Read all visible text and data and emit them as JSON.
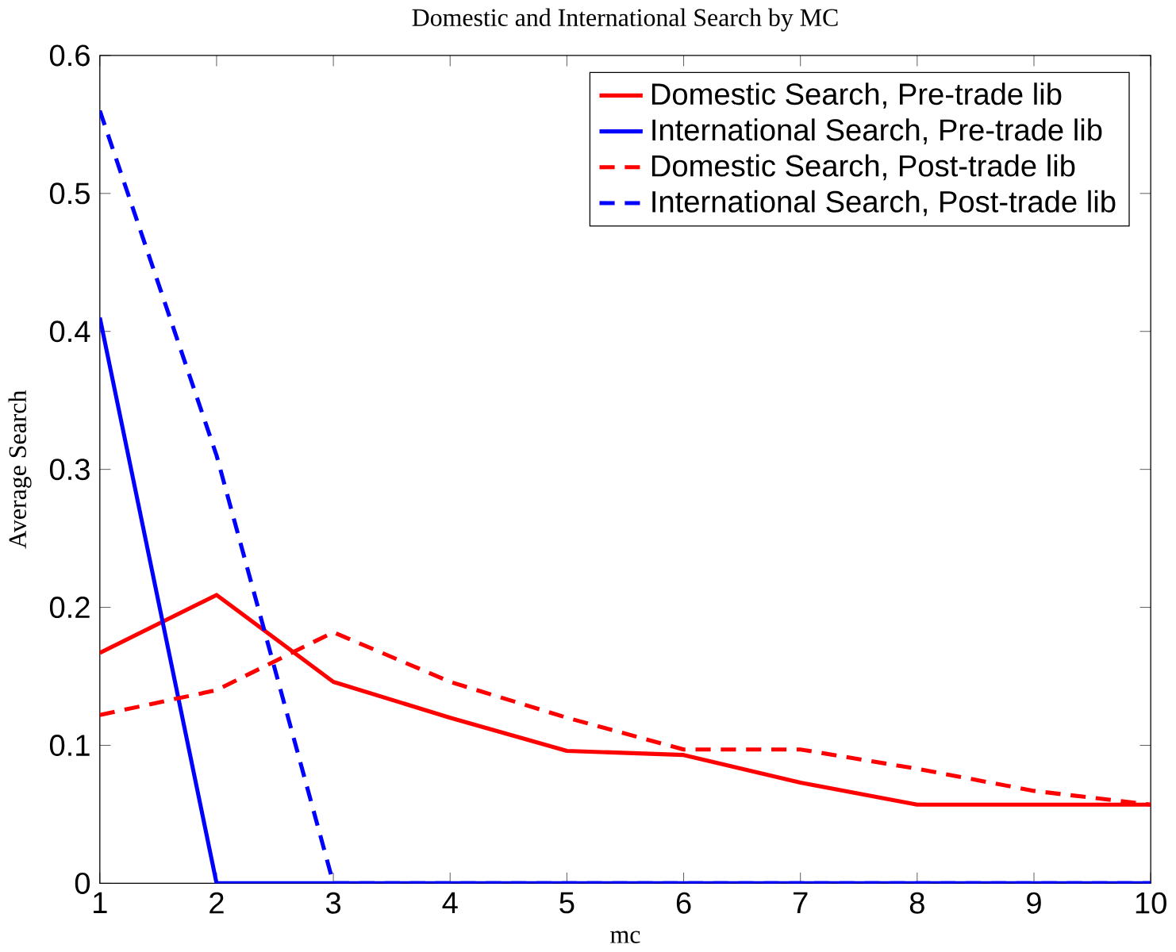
{
  "chart_data": {
    "type": "line",
    "title": "Domestic and International Search by MC",
    "xlabel": "mc",
    "ylabel": "Average Search",
    "x": [
      1,
      2,
      3,
      4,
      5,
      6,
      7,
      8,
      9,
      10
    ],
    "series": [
      {
        "name": "Domestic Search, Pre-trade lib",
        "color": "#ff0000",
        "line_style": "solid",
        "values": [
          0.167,
          0.209,
          0.146,
          0.12,
          0.096,
          0.093,
          0.073,
          0.057,
          0.057,
          0.057
        ]
      },
      {
        "name": "International Search, Pre-trade lib",
        "color": "#0000ff",
        "line_style": "solid",
        "values": [
          0.41,
          0,
          0,
          0,
          0,
          0,
          0,
          0,
          0,
          0
        ]
      },
      {
        "name": "Domestic Search, Post-trade lib",
        "color": "#ff0000",
        "line_style": "dashed",
        "values": [
          0.122,
          0.14,
          0.182,
          0.146,
          0.12,
          0.097,
          0.097,
          0.083,
          0.067,
          0.057
        ]
      },
      {
        "name": "International Search, Post-trade lib",
        "color": "#0000ff",
        "line_style": "dashed",
        "values": [
          0.56,
          0.31,
          0,
          0,
          0,
          0,
          0,
          0,
          0,
          0
        ]
      }
    ],
    "xlim": [
      1,
      10
    ],
    "xticks": [
      1,
      2,
      3,
      4,
      5,
      6,
      7,
      8,
      9,
      10
    ],
    "ylim": [
      0,
      0.6
    ],
    "yticks": [
      0,
      0.1,
      0.2,
      0.3,
      0.4,
      0.5,
      0.6
    ],
    "legend": "top right",
    "marker": "none",
    "grid": false
  }
}
